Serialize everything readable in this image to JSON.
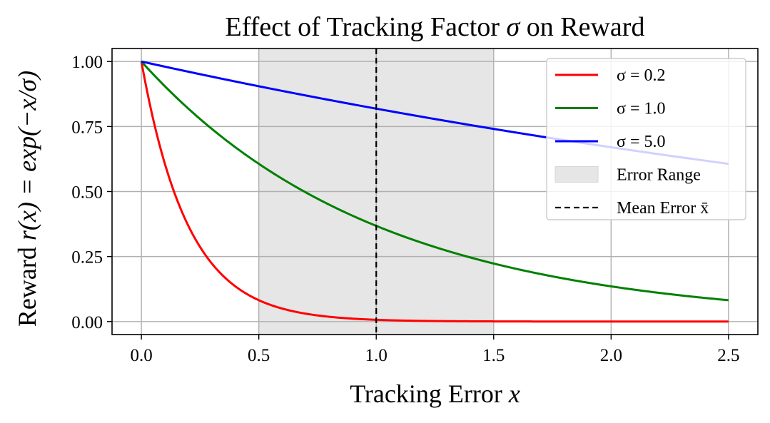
{
  "chart_data": {
    "type": "line",
    "title": "Effect of Tracking Factor σ on Reward",
    "title_parts": {
      "before": "Effect of Tracking Factor ",
      "symbol": "σ",
      "after": " on Reward"
    },
    "xlabel": "Tracking Error x",
    "xlabel_parts": {
      "text": "Tracking Error ",
      "var": "x"
    },
    "ylabel": "Reward r(x) = exp(−x/σ)",
    "ylabel_parts": {
      "text": "Reward ",
      "math": "r(x) = exp(−x/σ)"
    },
    "xlim": [
      -0.125,
      2.625
    ],
    "ylim": [
      -0.05,
      1.05
    ],
    "x_ticks": [
      "0.0",
      "0.5",
      "1.0",
      "1.5",
      "2.0",
      "2.5"
    ],
    "y_ticks": [
      "0.00",
      "0.25",
      "0.50",
      "0.75",
      "1.00"
    ],
    "grid": true,
    "legend_position": "upper right",
    "function": "exp(-x/sigma)",
    "x_range": [
      0,
      2.5
    ],
    "series": [
      {
        "name": "σ = 0.2",
        "sigma": 0.2,
        "color": "#ff0000",
        "x": [
          0,
          0.1,
          0.2,
          0.3,
          0.4,
          0.5,
          0.75,
          1.0,
          1.5,
          2.0,
          2.5
        ],
        "y": [
          1.0,
          0.607,
          0.368,
          0.223,
          0.135,
          0.082,
          0.024,
          0.007,
          0.001,
          0.0,
          0.0
        ]
      },
      {
        "name": "σ = 1.0",
        "sigma": 1.0,
        "color": "#008000",
        "x": [
          0,
          0.25,
          0.5,
          0.75,
          1.0,
          1.5,
          2.0,
          2.5
        ],
        "y": [
          1.0,
          0.779,
          0.607,
          0.472,
          0.368,
          0.223,
          0.135,
          0.082
        ]
      },
      {
        "name": "σ = 5.0",
        "sigma": 5.0,
        "color": "#0000ff",
        "x": [
          0,
          0.5,
          1.0,
          1.5,
          2.0,
          2.5
        ],
        "y": [
          1.0,
          0.905,
          0.819,
          0.741,
          0.67,
          0.607
        ]
      }
    ],
    "shaded_region": {
      "name": "Error Range",
      "x_start": 0.5,
      "x_end": 1.5,
      "color": "#e6e6e6"
    },
    "vertical_line": {
      "name": "Mean Error x̄",
      "x": 1.0,
      "color": "#000000",
      "style": "dashed"
    },
    "legend": [
      {
        "label": "σ = 0.2",
        "kind": "line",
        "color": "#ff0000"
      },
      {
        "label": "σ = 1.0",
        "kind": "line",
        "color": "#008000"
      },
      {
        "label": "σ = 5.0",
        "kind": "line",
        "color": "#0000ff"
      },
      {
        "label": "Error Range",
        "kind": "patch",
        "color": "#e6e6e6"
      },
      {
        "label": "Mean Error x̄",
        "kind": "dashed",
        "color": "#000000"
      }
    ]
  }
}
